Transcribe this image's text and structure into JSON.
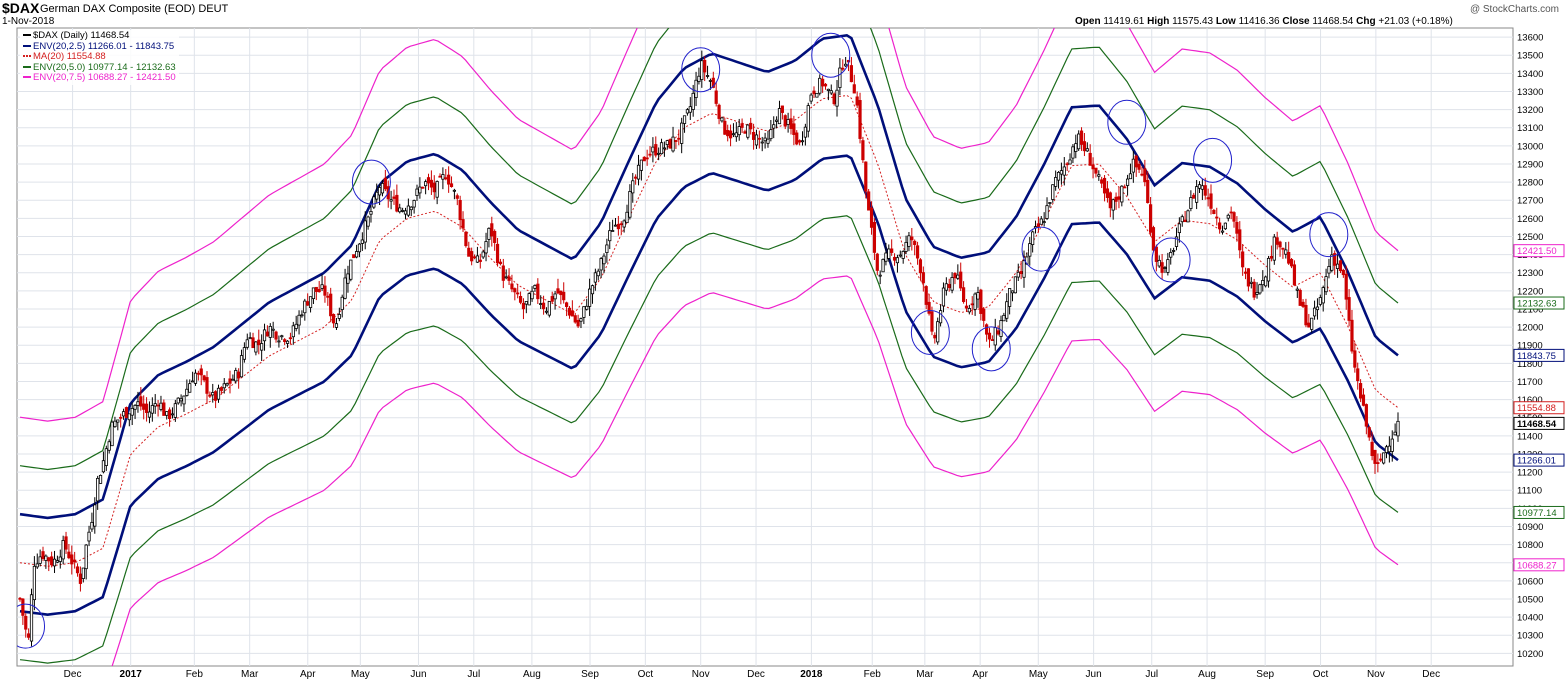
{
  "header": {
    "symbol": "$DAX",
    "name": "German DAX Composite (EOD)  DEUT",
    "date": "1-Nov-2018",
    "credit": "@ StockCharts.com",
    "ohlc": {
      "open_label": "Open",
      "open": "11419.61",
      "high_label": "High",
      "high": "11575.43",
      "low_label": "Low",
      "low": "11416.36",
      "close_label": "Close",
      "close": "11468.54",
      "chg_label": "Chg",
      "chg": "+21.03 (+0.18%)"
    }
  },
  "legend": [
    {
      "label": "$DAX (Daily) 11468.54",
      "color": "#000000"
    },
    {
      "label": "ENV(20,2.5) 11266.01 - 11843.75",
      "color": "#000f7a"
    },
    {
      "label": "MA(20) 11554.88",
      "color": "#d42020"
    },
    {
      "label": "ENV(20,5.0) 10977.14 - 12132.63",
      "color": "#1a6b1a"
    },
    {
      "label": "ENV(20,7.5) 10688.27 - 12421.50",
      "color": "#ee22cc"
    }
  ],
  "colors": {
    "up": "#000000",
    "down": "#cc0000",
    "env25": "#000f7a",
    "env50": "#1a6b1a",
    "env75": "#ee22cc",
    "ma": "#d42020",
    "circle": "#2222cc",
    "grid": "#dfe3ea"
  },
  "chart_data": {
    "type": "line",
    "title": "$DAX (Daily) 11468.54",
    "ylim": [
      10130,
      13650
    ],
    "y_ticks": [
      10200,
      10300,
      10400,
      10500,
      10600,
      10700,
      10800,
      10900,
      11000,
      11100,
      11200,
      11300,
      11400,
      11500,
      11600,
      11700,
      11800,
      11900,
      12000,
      12100,
      12200,
      12300,
      12400,
      12500,
      12600,
      12700,
      12800,
      12900,
      13000,
      13100,
      13200,
      13300,
      13400,
      13500,
      13600
    ],
    "x_labels": [
      {
        "label": "Dec",
        "bold": false,
        "t": 1.9
      },
      {
        "label": "2017",
        "bold": true,
        "t": 4.0
      },
      {
        "label": "Feb",
        "bold": false,
        "t": 6.3
      },
      {
        "label": "Mar",
        "bold": false,
        "t": 8.3
      },
      {
        "label": "Apr",
        "bold": false,
        "t": 10.4
      },
      {
        "label": "May",
        "bold": false,
        "t": 12.3
      },
      {
        "label": "Jun",
        "bold": false,
        "t": 14.4
      },
      {
        "label": "Jul",
        "bold": false,
        "t": 16.4
      },
      {
        "label": "Aug",
        "bold": false,
        "t": 18.5
      },
      {
        "label": "Sep",
        "bold": false,
        "t": 20.6
      },
      {
        "label": "Oct",
        "bold": false,
        "t": 22.6
      },
      {
        "label": "Nov",
        "bold": false,
        "t": 24.6
      },
      {
        "label": "Dec",
        "bold": false,
        "t": 26.6
      },
      {
        "label": "2018",
        "bold": true,
        "t": 28.6
      },
      {
        "label": "Feb",
        "bold": false,
        "t": 30.8
      },
      {
        "label": "Mar",
        "bold": false,
        "t": 32.7
      },
      {
        "label": "Apr",
        "bold": false,
        "t": 34.7
      },
      {
        "label": "May",
        "bold": false,
        "t": 36.8
      },
      {
        "label": "Jun",
        "bold": false,
        "t": 38.8
      },
      {
        "label": "Jul",
        "bold": false,
        "t": 40.9
      },
      {
        "label": "Aug",
        "bold": false,
        "t": 42.9
      },
      {
        "label": "Sep",
        "bold": false,
        "t": 45.0
      },
      {
        "label": "Oct",
        "bold": false,
        "t": 47.0
      },
      {
        "label": "Nov",
        "bold": false,
        "t": 49.0
      },
      {
        "label": "Dec",
        "bold": false,
        "t": 51.0
      }
    ],
    "price_points": [
      [
        0.0,
        10500
      ],
      [
        0.3,
        10250
      ],
      [
        0.5,
        10700
      ],
      [
        0.8,
        10750
      ],
      [
        1.2,
        10700
      ],
      [
        1.6,
        10800
      ],
      [
        1.9,
        10700
      ],
      [
        2.2,
        10600
      ],
      [
        2.4,
        10800
      ],
      [
        2.6,
        10950
      ],
      [
        2.8,
        11150
      ],
      [
        3.0,
        11250
      ],
      [
        3.3,
        11450
      ],
      [
        3.6,
        11500
      ],
      [
        4.0,
        11550
      ],
      [
        4.3,
        11580
      ],
      [
        4.6,
        11520
      ],
      [
        5.0,
        11600
      ],
      [
        5.3,
        11500
      ],
      [
        5.6,
        11550
      ],
      [
        6.0,
        11650
      ],
      [
        6.3,
        11750
      ],
      [
        6.6,
        11700
      ],
      [
        7.0,
        11600
      ],
      [
        7.3,
        11650
      ],
      [
        7.6,
        11700
      ],
      [
        7.9,
        11750
      ],
      [
        8.2,
        11950
      ],
      [
        8.6,
        11900
      ],
      [
        9.0,
        12000
      ],
      [
        9.4,
        11950
      ],
      [
        9.8,
        11950
      ],
      [
        10.2,
        12100
      ],
      [
        10.6,
        12200
      ],
      [
        11.0,
        12200
      ],
      [
        11.4,
        12000
      ],
      [
        11.8,
        12300
      ],
      [
        12.2,
        12450
      ],
      [
        12.6,
        12600
      ],
      [
        13.0,
        12780
      ],
      [
        13.4,
        12700
      ],
      [
        13.8,
        12650
      ],
      [
        14.2,
        12700
      ],
      [
        14.6,
        12800
      ],
      [
        15.0,
        12750
      ],
      [
        15.4,
        12850
      ],
      [
        15.8,
        12700
      ],
      [
        16.2,
        12400
      ],
      [
        16.6,
        12350
      ],
      [
        17.0,
        12550
      ],
      [
        17.4,
        12300
      ],
      [
        17.8,
        12200
      ],
      [
        18.2,
        12100
      ],
      [
        18.6,
        12200
      ],
      [
        19.0,
        12100
      ],
      [
        19.4,
        12200
      ],
      [
        19.8,
        12100
      ],
      [
        20.2,
        12000
      ],
      [
        20.6,
        12200
      ],
      [
        21.0,
        12350
      ],
      [
        21.4,
        12550
      ],
      [
        21.8,
        12600
      ],
      [
        22.2,
        12800
      ],
      [
        22.6,
        12950
      ],
      [
        23.0,
        12980
      ],
      [
        23.4,
        13000
      ],
      [
        23.8,
        13050
      ],
      [
        24.2,
        13200
      ],
      [
        24.6,
        13450
      ],
      [
        25.0,
        13350
      ],
      [
        25.4,
        13100
      ],
      [
        25.8,
        13050
      ],
      [
        26.2,
        13100
      ],
      [
        26.6,
        13050
      ],
      [
        27.0,
        13000
      ],
      [
        27.4,
        13200
      ],
      [
        27.8,
        13100
      ],
      [
        28.2,
        13000
      ],
      [
        28.6,
        13300
      ],
      [
        29.0,
        13350
      ],
      [
        29.4,
        13250
      ],
      [
        29.8,
        13500
      ],
      [
        30.2,
        13300
      ],
      [
        30.6,
        12700
      ],
      [
        31.0,
        12300
      ],
      [
        31.4,
        12400
      ],
      [
        31.8,
        12400
      ],
      [
        32.2,
        12500
      ],
      [
        32.6,
        12300
      ],
      [
        33.0,
        11900
      ],
      [
        33.4,
        12200
      ],
      [
        33.8,
        12300
      ],
      [
        34.2,
        12100
      ],
      [
        34.6,
        12200
      ],
      [
        35.0,
        11900
      ],
      [
        35.4,
        12000
      ],
      [
        35.8,
        12200
      ],
      [
        36.2,
        12300
      ],
      [
        36.6,
        12500
      ],
      [
        37.0,
        12600
      ],
      [
        37.4,
        12800
      ],
      [
        37.8,
        12900
      ],
      [
        38.2,
        13050
      ],
      [
        38.6,
        12950
      ],
      [
        39.0,
        12800
      ],
      [
        39.4,
        12650
      ],
      [
        39.8,
        12750
      ],
      [
        40.2,
        12900
      ],
      [
        40.6,
        12850
      ],
      [
        41.0,
        12400
      ],
      [
        41.4,
        12300
      ],
      [
        41.8,
        12500
      ],
      [
        42.2,
        12650
      ],
      [
        42.6,
        12800
      ],
      [
        43.0,
        12700
      ],
      [
        43.4,
        12550
      ],
      [
        43.8,
        12650
      ],
      [
        44.2,
        12300
      ],
      [
        44.6,
        12200
      ],
      [
        45.0,
        12300
      ],
      [
        45.4,
        12500
      ],
      [
        45.8,
        12400
      ],
      [
        46.2,
        12150
      ],
      [
        46.6,
        12000
      ],
      [
        47.0,
        12150
      ],
      [
        47.4,
        12400
      ],
      [
        47.8,
        12300
      ],
      [
        48.2,
        11800
      ],
      [
        48.6,
        11500
      ],
      [
        49.0,
        11200
      ],
      [
        49.4,
        11350
      ],
      [
        49.8,
        11468
      ]
    ],
    "ma20_points": [
      [
        0.0,
        10700
      ],
      [
        1.0,
        10680
      ],
      [
        2.0,
        10700
      ],
      [
        3.0,
        10780
      ],
      [
        4.0,
        11300
      ],
      [
        5.0,
        11450
      ],
      [
        6.0,
        11520
      ],
      [
        7.0,
        11600
      ],
      [
        8.0,
        11720
      ],
      [
        9.0,
        11840
      ],
      [
        10.0,
        11920
      ],
      [
        11.0,
        12000
      ],
      [
        12.0,
        12150
      ],
      [
        13.0,
        12480
      ],
      [
        14.0,
        12600
      ],
      [
        15.0,
        12640
      ],
      [
        16.0,
        12550
      ],
      [
        17.0,
        12380
      ],
      [
        18.0,
        12230
      ],
      [
        19.0,
        12150
      ],
      [
        20.0,
        12070
      ],
      [
        21.0,
        12270
      ],
      [
        22.0,
        12600
      ],
      [
        23.0,
        12920
      ],
      [
        24.0,
        13100
      ],
      [
        25.0,
        13180
      ],
      [
        26.0,
        13130
      ],
      [
        27.0,
        13080
      ],
      [
        28.0,
        13140
      ],
      [
        29.0,
        13260
      ],
      [
        30.0,
        13280
      ],
      [
        31.0,
        12900
      ],
      [
        32.0,
        12400
      ],
      [
        33.0,
        12140
      ],
      [
        34.0,
        12080
      ],
      [
        35.0,
        12110
      ],
      [
        36.0,
        12300
      ],
      [
        37.0,
        12580
      ],
      [
        38.0,
        12890
      ],
      [
        39.0,
        12900
      ],
      [
        40.0,
        12720
      ],
      [
        41.0,
        12470
      ],
      [
        42.0,
        12590
      ],
      [
        43.0,
        12570
      ],
      [
        44.0,
        12480
      ],
      [
        45.0,
        12340
      ],
      [
        46.0,
        12220
      ],
      [
        47.0,
        12300
      ],
      [
        48.0,
        12000
      ],
      [
        49.0,
        11650
      ],
      [
        49.8,
        11555
      ]
    ],
    "envelopes": [
      {
        "name": "ENV(20,2.5)",
        "pct": 0.025,
        "upper": "11843.75",
        "lower": "11266.01"
      },
      {
        "name": "ENV(20,5.0)",
        "pct": 0.05,
        "upper": "12132.63",
        "lower": "10977.14"
      },
      {
        "name": "ENV(20,7.5)",
        "pct": 0.075,
        "upper": "12421.50",
        "lower": "10688.27"
      }
    ],
    "price_labels": [
      {
        "value": 12421.5,
        "text": "12421.50",
        "color": "#ee22cc",
        "bold": false
      },
      {
        "value": 12132.63,
        "text": "12132.63",
        "color": "#1a6b1a",
        "bold": false
      },
      {
        "value": 11843.75,
        "text": "11843.75",
        "color": "#000f7a",
        "bold": false
      },
      {
        "value": 11554.88,
        "text": "11554.88",
        "color": "#d42020",
        "bold": false
      },
      {
        "value": 11468.54,
        "text": "11468.54",
        "color": "#000000",
        "bold": true
      },
      {
        "value": 11266.01,
        "text": "11266.01",
        "color": "#000f7a",
        "bold": false
      },
      {
        "value": 10977.14,
        "text": "10977.14",
        "color": "#1a6b1a",
        "bold": false
      },
      {
        "value": 10688.27,
        "text": "10688.27",
        "color": "#ee22cc",
        "bold": false
      }
    ],
    "circle_annotations": [
      [
        0.2,
        10350
      ],
      [
        12.7,
        12800
      ],
      [
        24.6,
        13420
      ],
      [
        29.3,
        13500
      ],
      [
        32.9,
        11970
      ],
      [
        35.1,
        11880
      ],
      [
        36.9,
        12430
      ],
      [
        40.0,
        13130
      ],
      [
        41.6,
        12370
      ],
      [
        43.1,
        12920
      ],
      [
        47.3,
        12510
      ]
    ]
  }
}
